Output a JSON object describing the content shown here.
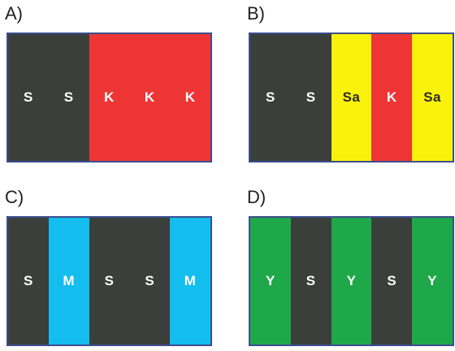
{
  "colors": {
    "S": "#3a3f3c",
    "K": "#ee3535",
    "Sa": "#fbf20c",
    "M": "#13bdee",
    "Y": "#1fa84a",
    "text_light": "#ffffff",
    "text_dark": "#2a2a2a",
    "border": "#3d4d8f"
  },
  "panels": [
    {
      "label": "A)",
      "stripes": [
        "S",
        "S",
        "K",
        "K",
        "K"
      ]
    },
    {
      "label": "B)",
      "stripes": [
        "S",
        "S",
        "Sa",
        "K",
        "Sa"
      ]
    },
    {
      "label": "C)",
      "stripes": [
        "S",
        "M",
        "S",
        "S",
        "M"
      ]
    },
    {
      "label": "D)",
      "stripes": [
        "Y",
        "S",
        "Y",
        "S",
        "Y"
      ]
    }
  ]
}
